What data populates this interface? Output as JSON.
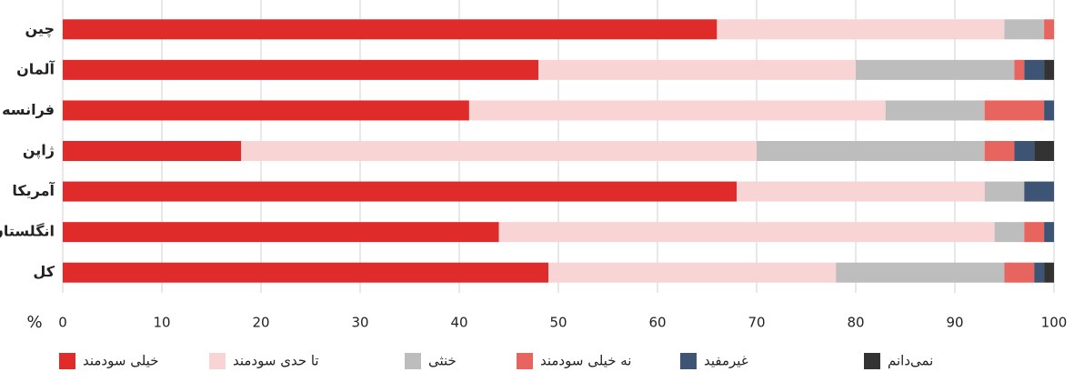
{
  "chart_data": {
    "type": "stacked-barh",
    "categories": [
      "چین",
      "آلمان",
      "فرانسه",
      "ژاپن",
      "آمریکا",
      "انگلستان",
      "کل"
    ],
    "series": [
      {
        "name": "خیلی سودمند",
        "color": "#e02b2b",
        "values": [
          66,
          48,
          41,
          18,
          68,
          44,
          49
        ]
      },
      {
        "name": "تا حدی سودمند",
        "color": "#f9d4d4",
        "values": [
          29,
          32,
          42,
          52,
          25,
          50,
          29
        ]
      },
      {
        "name": "خنثی",
        "color": "#bdbdbd",
        "values": [
          4,
          16,
          10,
          23,
          4,
          3,
          17
        ]
      },
      {
        "name": "نه خیلی سودمند",
        "color": "#e8645e",
        "values": [
          1,
          1,
          6,
          3,
          0,
          2,
          3
        ]
      },
      {
        "name": "غیرمفید",
        "color": "#3d5475",
        "values": [
          0,
          2,
          1,
          2,
          3,
          1,
          1
        ]
      },
      {
        "name": "نمی‌دانم",
        "color": "#333333",
        "values": [
          0,
          1,
          0,
          2,
          0,
          0,
          1
        ]
      }
    ],
    "xlabel": "%",
    "xlim": [
      0,
      100
    ],
    "xticks": [
      0,
      10,
      20,
      30,
      40,
      50,
      60,
      70,
      80,
      90,
      100
    ],
    "grid": true,
    "legend": "bottom"
  }
}
